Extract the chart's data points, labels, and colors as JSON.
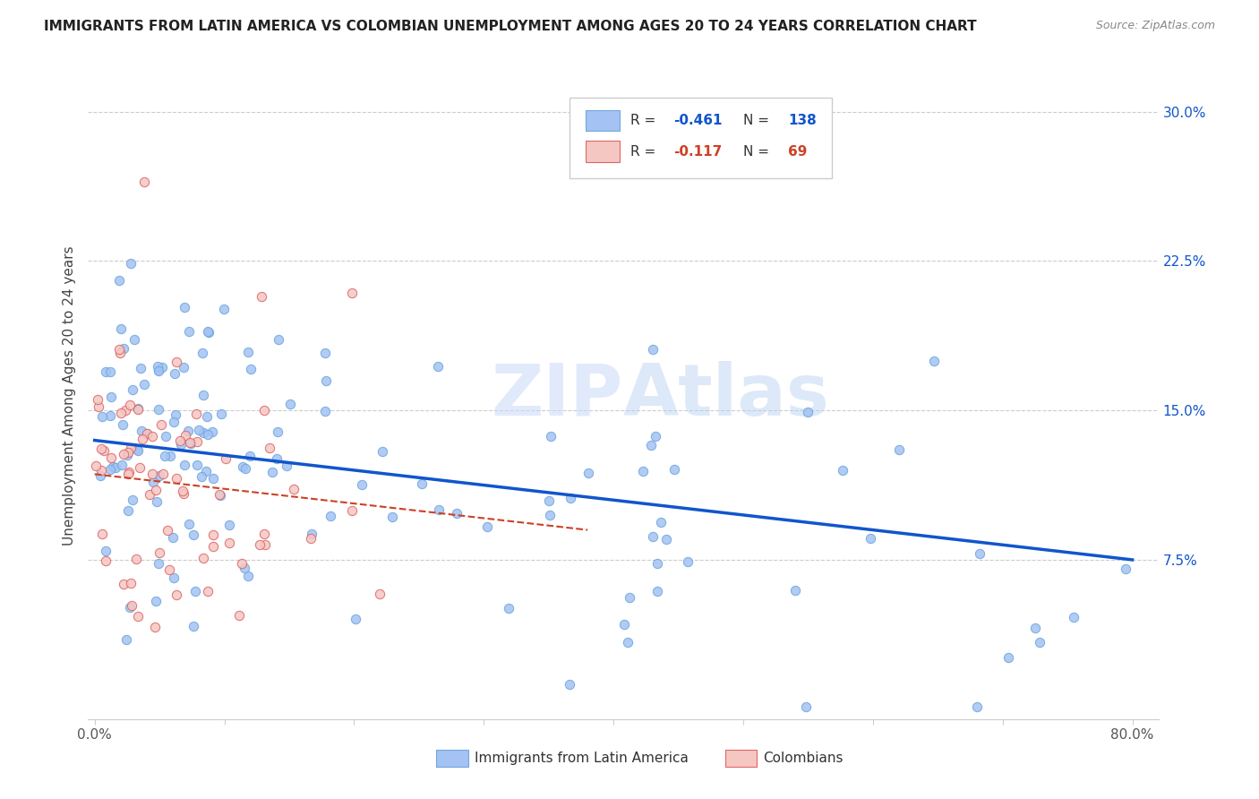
{
  "title": "IMMIGRANTS FROM LATIN AMERICA VS COLOMBIAN UNEMPLOYMENT AMONG AGES 20 TO 24 YEARS CORRELATION CHART",
  "source": "Source: ZipAtlas.com",
  "ylabel": "Unemployment Among Ages 20 to 24 years",
  "yticks": [
    "30.0%",
    "22.5%",
    "15.0%",
    "7.5%"
  ],
  "ytick_vals": [
    0.3,
    0.225,
    0.15,
    0.075
  ],
  "ylim": [
    -0.005,
    0.32
  ],
  "xlim": [
    -0.005,
    0.82
  ],
  "legend_r1": "R = -0.461",
  "legend_n1": "N = 138",
  "legend_r2": "R = -0.117",
  "legend_n2": "N =  69",
  "color_blue": "#a4c2f4",
  "color_pink": "#f4c7c3",
  "color_blue_edge": "#6fa8dc",
  "color_pink_edge": "#e06666",
  "color_blue_line": "#1155cc",
  "color_pink_line": "#cc4125",
  "watermark": "ZIPAtlas",
  "grid_color": "#cccccc",
  "seed": 42
}
